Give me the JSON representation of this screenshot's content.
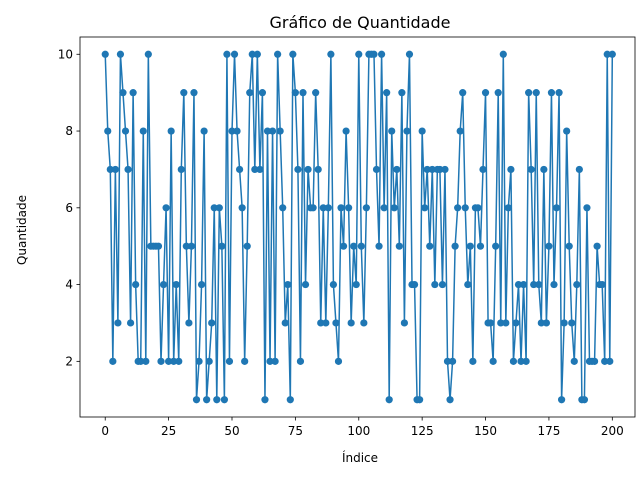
{
  "chart_data": {
    "type": "line",
    "title": "Gráfico de Quantidade",
    "xlabel": "Índice",
    "ylabel": "Quantidade",
    "xlim": [
      -9.95,
      208.95
    ],
    "ylim": [
      0.55,
      10.45
    ],
    "xticks": [
      0,
      25,
      50,
      75,
      100,
      125,
      150,
      175,
      200
    ],
    "yticks": [
      2,
      4,
      6,
      8,
      10
    ],
    "grid": false,
    "marker": "circle",
    "color": "#1f77b4",
    "series": [
      {
        "values": [
          10,
          8,
          7,
          2,
          7,
          3,
          10,
          9,
          8,
          7,
          3,
          9,
          4,
          2,
          2,
          8,
          2,
          10,
          5,
          5,
          5,
          5,
          2,
          4,
          6,
          2,
          8,
          2,
          4,
          2,
          7,
          9,
          5,
          3,
          5,
          9,
          1,
          2,
          4,
          8,
          1,
          2,
          3,
          6,
          1,
          6,
          5,
          1,
          10,
          2,
          8,
          10,
          8,
          7,
          6,
          2,
          5,
          9,
          10,
          7,
          10,
          7,
          9,
          1,
          8,
          2,
          8,
          2,
          10,
          8,
          6,
          3,
          4,
          1,
          10,
          9,
          7,
          2,
          9,
          4,
          7,
          6,
          6,
          9,
          7,
          3,
          6,
          3,
          6,
          10,
          4,
          3,
          2,
          6,
          5,
          8,
          6,
          3,
          5,
          4,
          10,
          5,
          3,
          6,
          10,
          10,
          10,
          7,
          5,
          10,
          6,
          9,
          1,
          8,
          6,
          7,
          5,
          9,
          3,
          8,
          10,
          4,
          4,
          1,
          1,
          8,
          6,
          7,
          5,
          7,
          4,
          7,
          7,
          4,
          7,
          2,
          1,
          2,
          5,
          6,
          8,
          9,
          6,
          4,
          5,
          2,
          6,
          6,
          5,
          7,
          9,
          3,
          3,
          2,
          5,
          9,
          3,
          10,
          3,
          6,
          7,
          2,
          3,
          4,
          2,
          4,
          2,
          9,
          7,
          4,
          9,
          4,
          3,
          7,
          3,
          5,
          9,
          4,
          6,
          9,
          1,
          3,
          8,
          5,
          3,
          2,
          4,
          7,
          1,
          1,
          6,
          2,
          2,
          2,
          5,
          4,
          4,
          2,
          10,
          2,
          10
        ]
      }
    ]
  }
}
